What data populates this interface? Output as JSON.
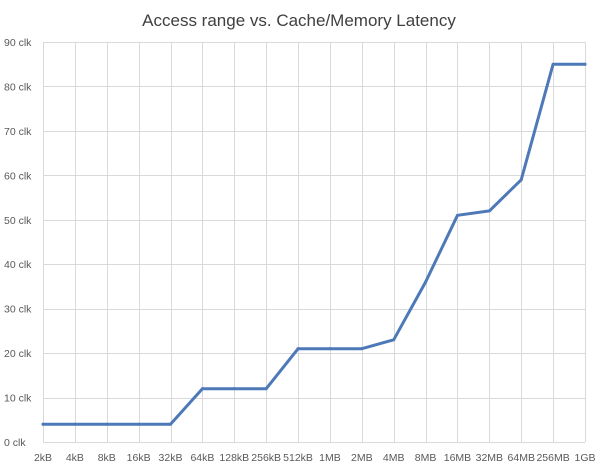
{
  "chart_data": {
    "type": "line",
    "title": "Access range vs. Cache/Memory Latency",
    "xlabel": "",
    "ylabel": "",
    "categories": [
      "2kB",
      "4kB",
      "8kB",
      "16kB",
      "32kB",
      "64kB",
      "128kB",
      "256kB",
      "512kB",
      "1MB",
      "2MB",
      "4MB",
      "8MB",
      "16MB",
      "32MB",
      "64MB",
      "256MB",
      "1GB"
    ],
    "series": [
      {
        "color": "#4e79b8",
        "values": [
          4,
          4,
          4,
          4,
          4,
          12,
          12,
          12,
          21,
          21,
          21,
          23,
          36,
          51,
          52,
          59,
          85,
          85
        ]
      }
    ],
    "ylim": [
      0,
      90
    ],
    "yticks": [
      0,
      10,
      20,
      30,
      40,
      50,
      60,
      70,
      80,
      90
    ],
    "ytick_labels": [
      "0 clk",
      "10 clk",
      "20 clk",
      "30 clk",
      "40 clk",
      "50 clk",
      "60 clk",
      "70 clk",
      "80 clk",
      "90 clk"
    ],
    "grid": true,
    "legend": "none"
  }
}
